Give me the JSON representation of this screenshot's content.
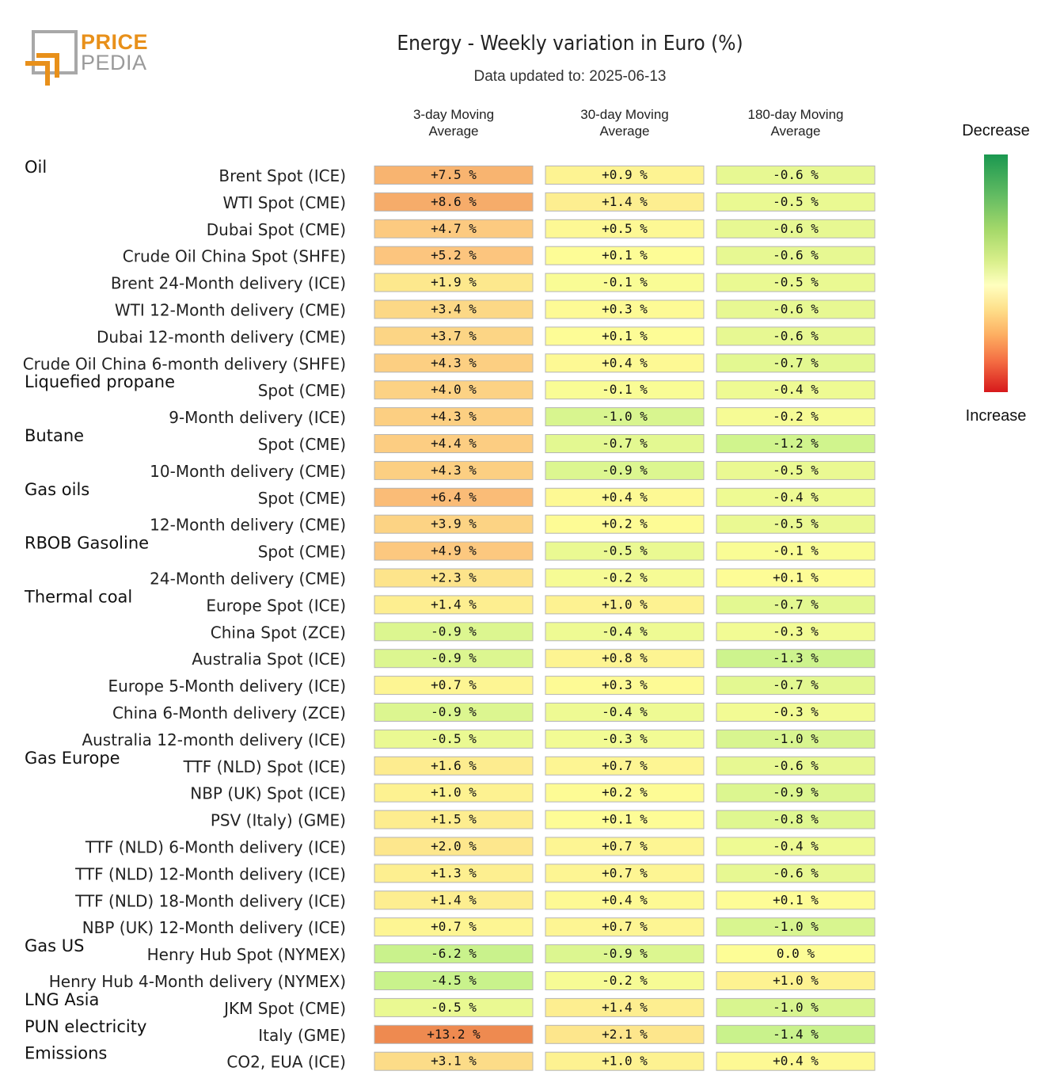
{
  "logo": {
    "line1": "PRICE",
    "line2": "PEDIA"
  },
  "title": "Energy - Weekly variation in Euro (%)",
  "subtitle": "Data updated to: 2025-06-13",
  "legend": {
    "top_label": "Decrease",
    "bottom_label": "Increase"
  },
  "colors": {
    "increase_strong": "#ee8a50",
    "increase": "#fcc77f",
    "neutral": "#fdfd96",
    "decrease": "#c9f28c",
    "cell_border": "#b5b5b5"
  },
  "chart_data": {
    "type": "table",
    "title": "Energy - Weekly variation in Euro (%)",
    "columns": [
      "3-day Moving\nAverage",
      "30-day Moving\nAverage",
      "180-day Moving\nAverage"
    ],
    "unit": "%",
    "rows": [
      {
        "group": "Oil",
        "label": "Brent Spot (ICE)",
        "values": [
          7.5,
          0.9,
          -0.6
        ]
      },
      {
        "group": "",
        "label": "WTI Spot (CME)",
        "values": [
          8.6,
          1.4,
          -0.5
        ]
      },
      {
        "group": "",
        "label": "Dubai Spot (CME)",
        "values": [
          4.7,
          0.5,
          -0.6
        ]
      },
      {
        "group": "",
        "label": "Crude Oil China Spot (SHFE)",
        "values": [
          5.2,
          0.1,
          -0.6
        ]
      },
      {
        "group": "",
        "label": "Brent 24-Month delivery (ICE)",
        "values": [
          1.9,
          -0.1,
          -0.5
        ]
      },
      {
        "group": "",
        "label": "WTI 12-Month delivery (CME)",
        "values": [
          3.4,
          0.3,
          -0.6
        ]
      },
      {
        "group": "",
        "label": "Dubai 12-month delivery (CME)",
        "values": [
          3.7,
          0.1,
          -0.6
        ]
      },
      {
        "group": "",
        "label": "Crude Oil China 6-month delivery (SHFE)",
        "values": [
          4.3,
          0.4,
          -0.7
        ]
      },
      {
        "group": "Liquefied propane",
        "label": "Spot (CME)",
        "values": [
          4.0,
          -0.1,
          -0.4
        ]
      },
      {
        "group": "",
        "label": "9-Month delivery (ICE)",
        "values": [
          4.3,
          -1.0,
          -0.2
        ]
      },
      {
        "group": "Butane",
        "label": "Spot (CME)",
        "values": [
          4.4,
          -0.7,
          -1.2
        ]
      },
      {
        "group": "",
        "label": "10-Month delivery (CME)",
        "values": [
          4.3,
          -0.9,
          -0.5
        ]
      },
      {
        "group": "Gas oils",
        "label": "Spot (CME)",
        "values": [
          6.4,
          0.4,
          -0.4
        ]
      },
      {
        "group": "",
        "label": "12-Month delivery (CME)",
        "values": [
          3.9,
          0.2,
          -0.5
        ]
      },
      {
        "group": "RBOB Gasoline",
        "label": "Spot (CME)",
        "values": [
          4.9,
          -0.5,
          -0.1
        ]
      },
      {
        "group": "",
        "label": "24-Month delivery (CME)",
        "values": [
          2.3,
          -0.2,
          0.1
        ]
      },
      {
        "group": "Thermal coal",
        "label": "Europe Spot (ICE)",
        "values": [
          1.4,
          1.0,
          -0.7
        ]
      },
      {
        "group": "",
        "label": "China Spot (ZCE)",
        "values": [
          -0.9,
          -0.4,
          -0.3
        ]
      },
      {
        "group": "",
        "label": "Australia Spot (ICE)",
        "values": [
          -0.9,
          0.8,
          -1.3
        ]
      },
      {
        "group": "",
        "label": "Europe 5-Month delivery (ICE)",
        "values": [
          0.7,
          0.3,
          -0.7
        ]
      },
      {
        "group": "",
        "label": "China 6-Month delivery (ZCE)",
        "values": [
          -0.9,
          -0.4,
          -0.3
        ]
      },
      {
        "group": "",
        "label": "Australia 12-month delivery (ICE)",
        "values": [
          -0.5,
          -0.3,
          -1.0
        ]
      },
      {
        "group": "Gas Europe",
        "label": "TTF (NLD) Spot (ICE)",
        "values": [
          1.6,
          0.7,
          -0.6
        ]
      },
      {
        "group": "",
        "label": "NBP (UK) Spot (ICE)",
        "values": [
          1.0,
          0.2,
          -0.9
        ]
      },
      {
        "group": "",
        "label": "PSV (Italy) (GME)",
        "values": [
          1.5,
          0.1,
          -0.8
        ]
      },
      {
        "group": "",
        "label": "TTF (NLD) 6-Month delivery (ICE)",
        "values": [
          2.0,
          0.7,
          -0.4
        ]
      },
      {
        "group": "",
        "label": "TTF (NLD) 12-Month delivery (ICE)",
        "values": [
          1.3,
          0.7,
          -0.6
        ]
      },
      {
        "group": "",
        "label": "TTF (NLD) 18-Month delivery (ICE)",
        "values": [
          1.4,
          0.4,
          0.1
        ]
      },
      {
        "group": "",
        "label": "NBP (UK) 12-Month delivery (ICE)",
        "values": [
          0.7,
          0.7,
          -1.0
        ]
      },
      {
        "group": "Gas US",
        "label": "Henry Hub Spot (NYMEX)",
        "values": [
          -6.2,
          -0.9,
          0.0
        ]
      },
      {
        "group": "",
        "label": "Henry Hub 4-Month delivery (NYMEX)",
        "values": [
          -4.5,
          -0.2,
          1.0
        ]
      },
      {
        "group": "LNG Asia",
        "label": "JKM Spot (CME)",
        "values": [
          -0.5,
          1.4,
          -1.0
        ]
      },
      {
        "group": "PUN electricity",
        "label": "Italy (GME)",
        "values": [
          13.2,
          2.1,
          -1.4
        ]
      },
      {
        "group": "Emissions",
        "label": "CO2, EUA (ICE)",
        "values": [
          3.1,
          1.0,
          0.4
        ]
      }
    ]
  }
}
